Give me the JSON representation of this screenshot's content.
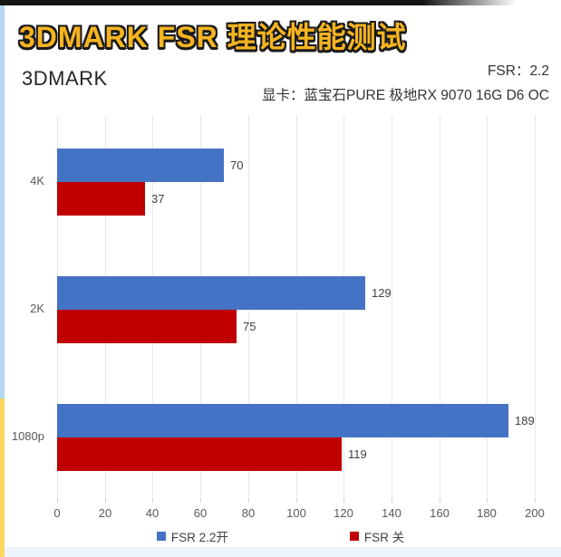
{
  "banner": {
    "title": "3DMARK FSR 理论性能测试",
    "text_color": "#F6B41F",
    "outline_color": "#1A1A1A"
  },
  "header": {
    "app_label": "3DMARK",
    "fsr_label": "FSR：2.2",
    "gpu_label": "显卡：蓝宝石PURE 极地RX 9070 16G D6 OC"
  },
  "chart_data": {
    "type": "bar",
    "orientation": "horizontal",
    "categories": [
      "4K",
      "2K",
      "1080p"
    ],
    "series": [
      {
        "name": "FSR 2.2开",
        "color": "#4472C4",
        "values": [
          70,
          129,
          189
        ]
      },
      {
        "name": "FSR 关",
        "color": "#C00000",
        "values": [
          37,
          75,
          119
        ]
      }
    ],
    "xlim": [
      0,
      200
    ],
    "tick_step": 20,
    "tick_labels": [
      "0",
      "20",
      "40",
      "60",
      "80",
      "100",
      "120",
      "140",
      "160",
      "180",
      "200"
    ],
    "grid": true,
    "value_labels": true,
    "legend_position": "bottom",
    "gridline_color": "#E8E8E8",
    "axis_label_color": "#595959",
    "value_label_color": "#404040"
  },
  "decor": {
    "top_strip_color": "#161616",
    "left_strip_top_color": "#B5D7F1",
    "left_strip_bottom_color": "#FFD75F",
    "bottom_strip_color": "#EDF5FA"
  }
}
